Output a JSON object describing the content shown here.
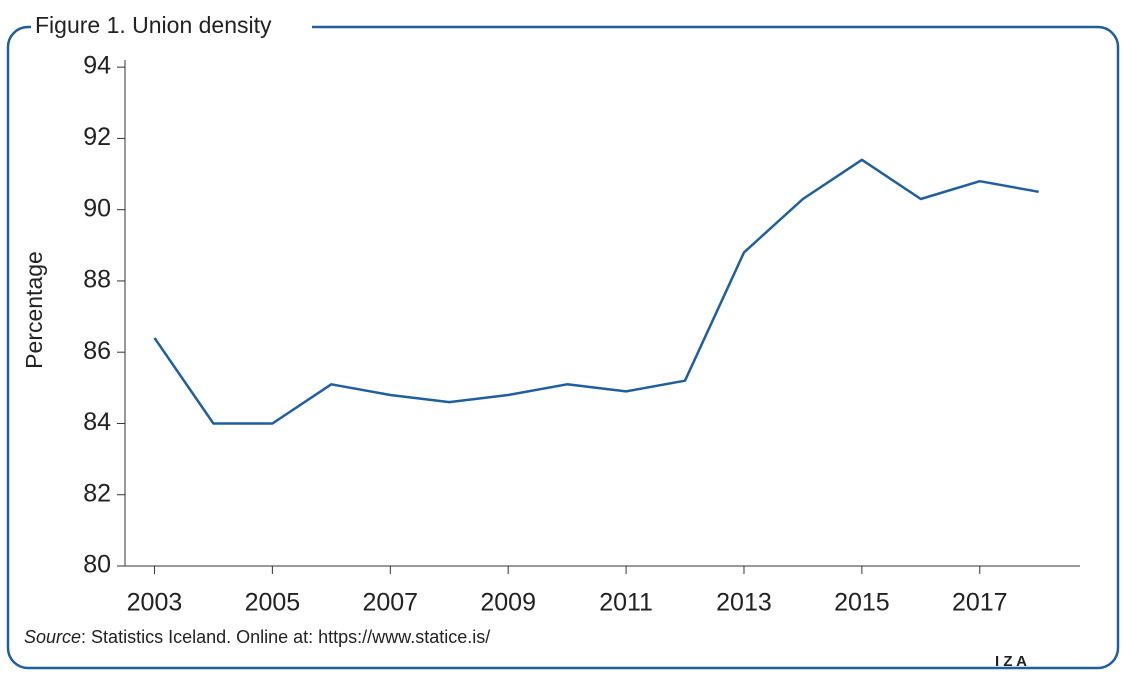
{
  "chart_data": {
    "type": "line",
    "title": "Figure 1. Union density",
    "ylabel": "Percentage",
    "source": {
      "label": "Source",
      "text": ": Statistics Iceland. Online at: https://www.statice.is/"
    },
    "logo": "I Z A",
    "x": [
      2003,
      2004,
      2005,
      2006,
      2007,
      2008,
      2009,
      2010,
      2011,
      2012,
      2013,
      2014,
      2015,
      2016,
      2017,
      2018
    ],
    "series": [
      {
        "color": "#1f5fa0",
        "values": [
          86.4,
          84.0,
          84.0,
          85.1,
          84.8,
          84.6,
          84.8,
          85.1,
          84.9,
          85.2,
          88.8,
          90.3,
          91.4,
          90.3,
          90.8,
          90.5
        ]
      }
    ],
    "xlim": [
      2002.5,
      2018.7
    ],
    "xticks": [
      2003,
      2005,
      2007,
      2009,
      2011,
      2013,
      2015,
      2017
    ],
    "ylim": [
      80,
      94.2
    ],
    "yticks": [
      80,
      82,
      84,
      86,
      88,
      90,
      92,
      94
    ],
    "frame_color": "#1f5fa0"
  }
}
